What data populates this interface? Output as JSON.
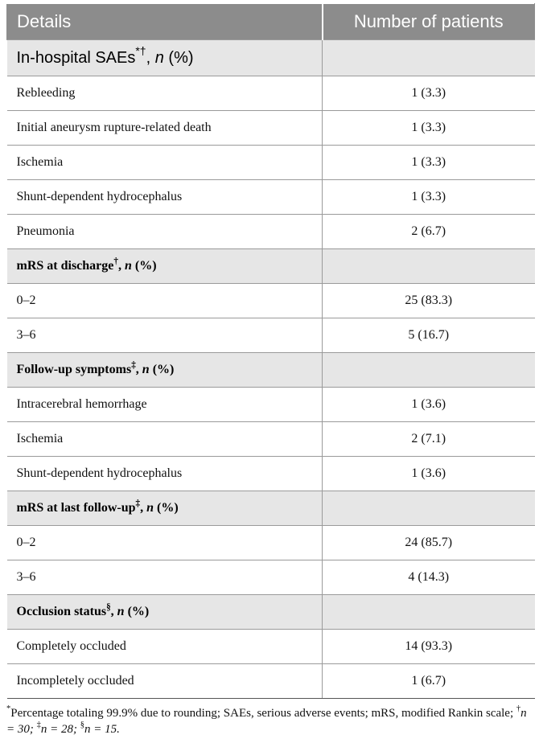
{
  "table": {
    "headers": [
      "Details",
      "Number of patients"
    ],
    "sections": [
      {
        "title": "In-hospital SAEs",
        "marks": "*†",
        "suffix_n": "n",
        "suffix_pct": "(%)",
        "rows": [
          {
            "label": "Rebleeding",
            "value": "1 (3.3)"
          },
          {
            "label": "Initial aneurysm rupture-related death",
            "value": "1 (3.3)"
          },
          {
            "label": "Ischemia",
            "value": "1 (3.3)"
          },
          {
            "label": "Shunt-dependent hydrocephalus",
            "value": "1 (3.3)"
          },
          {
            "label": "Pneumonia",
            "value": "2 (6.7)"
          }
        ]
      },
      {
        "title": "mRS at discharge",
        "marks": "†",
        "suffix_n": "n",
        "suffix_pct": "(%)",
        "rows": [
          {
            "label": "0–2",
            "value": "25 (83.3)"
          },
          {
            "label": "3–6",
            "value": "5 (16.7)"
          }
        ]
      },
      {
        "title": "Follow-up symptoms",
        "marks": "‡",
        "suffix_n": "n",
        "suffix_pct": "(%)",
        "rows": [
          {
            "label": "Intracerebral hemorrhage",
            "value": "1 (3.6)"
          },
          {
            "label": "Ischemia",
            "value": "2 (7.1)"
          },
          {
            "label": "Shunt-dependent hydrocephalus",
            "value": "1 (3.6)"
          }
        ]
      },
      {
        "title": "mRS at last follow-up",
        "marks": "‡",
        "suffix_n": "n",
        "suffix_pct": "(%)",
        "rows": [
          {
            "label": "0–2",
            "value": "24 (85.7)"
          },
          {
            "label": "3–6",
            "value": "4 (14.3)"
          }
        ]
      },
      {
        "title": "Occlusion status",
        "marks": "§",
        "suffix_n": "n",
        "suffix_pct": "(%)",
        "rows": [
          {
            "label": "Completely occluded",
            "value": "14 (93.3)"
          },
          {
            "label": "Incompletely occluded",
            "value": "1 (6.7)"
          }
        ]
      }
    ]
  },
  "footnote": {
    "star": "*",
    "text1": "Percentage totaling 99.9% due to rounding; SAEs, serious adverse events; mRS, modified Rankin scale; ",
    "dagger": "†",
    "n1": "n = 30; ",
    "ddagger": "‡",
    "n2": "n = 28; ",
    "section": "§",
    "n3": "n = 15."
  }
}
